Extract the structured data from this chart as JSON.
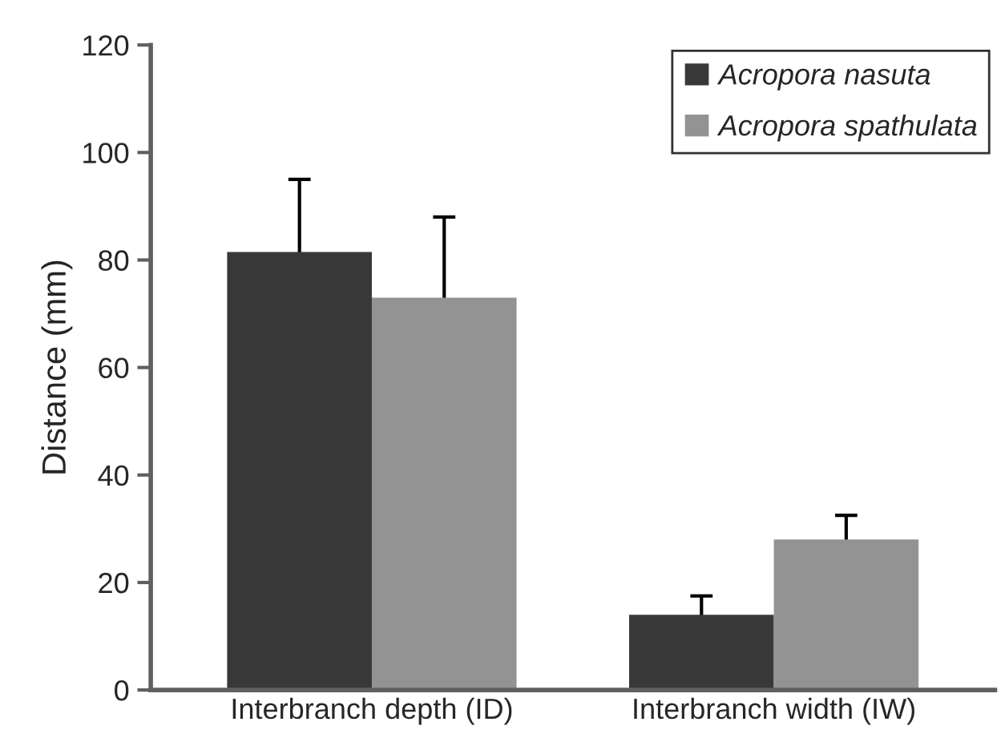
{
  "chart_data": {
    "type": "bar",
    "ylabel": "Distance (mm)",
    "categories": [
      "Interbranch depth (ID)",
      "Interbranch width (IW)"
    ],
    "series": [
      {
        "name": "Acropora nasuta",
        "color": "#383838",
        "values": [
          81.5,
          14
        ],
        "errors": [
          13.5,
          3.5
        ]
      },
      {
        "name": "Acropora spathulata",
        "color": "#939393",
        "values": [
          73,
          28
        ],
        "errors": [
          15,
          4.5
        ]
      }
    ],
    "ylim": [
      0,
      120
    ],
    "yticks": [
      0,
      20,
      40,
      60,
      80,
      100,
      120
    ],
    "grid": false,
    "legend": "top right"
  }
}
